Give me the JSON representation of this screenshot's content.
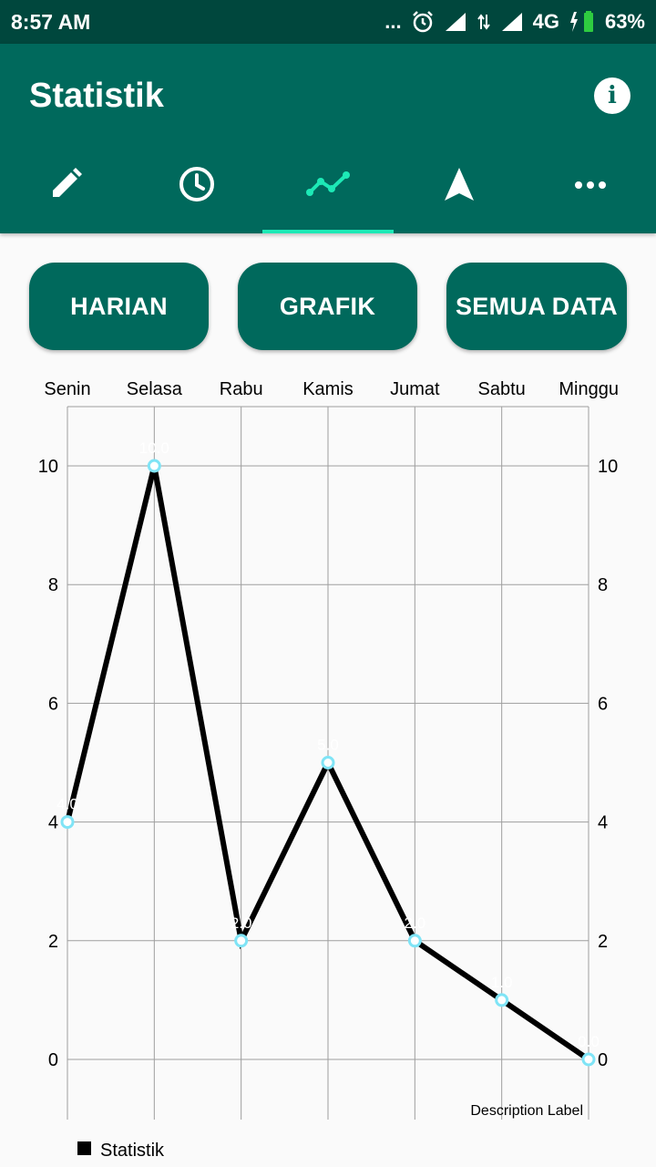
{
  "status_bar": {
    "time": "8:57 AM",
    "dots": "...",
    "network": "4G",
    "battery": "63%"
  },
  "app_bar": {
    "title": "Statistik",
    "tabs": [
      {
        "icon": "pencil-icon"
      },
      {
        "icon": "clock-icon"
      },
      {
        "icon": "chart-line-icon",
        "active": true
      },
      {
        "icon": "navigation-arrow-icon"
      },
      {
        "icon": "more-horizontal-icon"
      }
    ]
  },
  "buttons": {
    "harian": "HARIAN",
    "grafik": "GRAFIK",
    "semua_data": "SEMUA DATA"
  },
  "colors": {
    "primary": "#00695c",
    "status_bar": "#00473d",
    "tab_indicator": "#1de9b6",
    "point_circle": "#7fe4f6",
    "line": "#000000"
  },
  "chart_data": {
    "type": "line",
    "categories": [
      "Senin",
      "Selasa",
      "Rabu",
      "Kamis",
      "Jumat",
      "Sabtu",
      "Minggu"
    ],
    "values": [
      4,
      10,
      2,
      5,
      2,
      1,
      0
    ],
    "value_labels": [
      "4.0",
      "10.0",
      "2.0",
      "5.0",
      "2.0",
      "1.0",
      "0.0"
    ],
    "ylim": [
      0,
      11
    ],
    "yticks": [
      0,
      2,
      4,
      6,
      8,
      10
    ],
    "y_axis_left": true,
    "y_axis_right": true,
    "xaxis_position": "top",
    "grid": true,
    "legend": {
      "position": "bottom-left",
      "label": "Statistik"
    },
    "description": "Description Label"
  }
}
